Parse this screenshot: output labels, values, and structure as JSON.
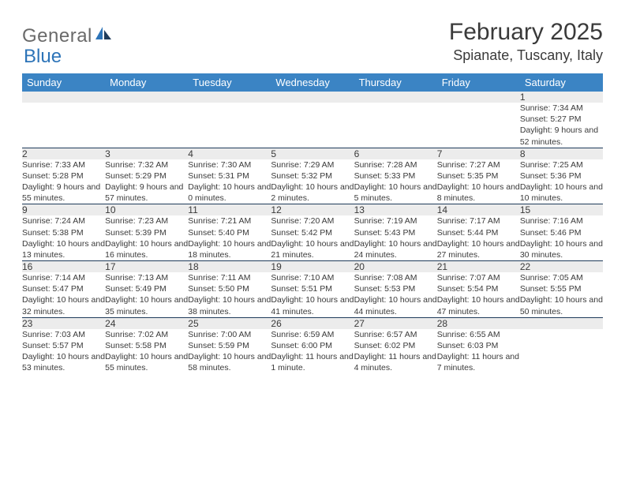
{
  "brand": {
    "word1": "General",
    "word2": "Blue"
  },
  "title": "February 2025",
  "location": "Spianate, Tuscany, Italy",
  "colors": {
    "header_bg": "#3b84c4",
    "header_fg": "#ffffff",
    "daynum_bg": "#ececec",
    "rule": "#1f3b5a",
    "text": "#3a3a3a",
    "brand_gray": "#6a6a6a",
    "brand_blue": "#2d74b8"
  },
  "typography": {
    "title_fontsize": 30,
    "location_fontsize": 18,
    "dayheader_fontsize": 13,
    "daynum_fontsize": 12,
    "body_fontsize": 10.5
  },
  "day_headers": [
    "Sunday",
    "Monday",
    "Tuesday",
    "Wednesday",
    "Thursday",
    "Friday",
    "Saturday"
  ],
  "weeks": [
    [
      null,
      null,
      null,
      null,
      null,
      null,
      {
        "n": "1",
        "sr": "7:34 AM",
        "ss": "5:27 PM",
        "dl": "9 hours and 52 minutes."
      }
    ],
    [
      {
        "n": "2",
        "sr": "7:33 AM",
        "ss": "5:28 PM",
        "dl": "9 hours and 55 minutes."
      },
      {
        "n": "3",
        "sr": "7:32 AM",
        "ss": "5:29 PM",
        "dl": "9 hours and 57 minutes."
      },
      {
        "n": "4",
        "sr": "7:30 AM",
        "ss": "5:31 PM",
        "dl": "10 hours and 0 minutes."
      },
      {
        "n": "5",
        "sr": "7:29 AM",
        "ss": "5:32 PM",
        "dl": "10 hours and 2 minutes."
      },
      {
        "n": "6",
        "sr": "7:28 AM",
        "ss": "5:33 PM",
        "dl": "10 hours and 5 minutes."
      },
      {
        "n": "7",
        "sr": "7:27 AM",
        "ss": "5:35 PM",
        "dl": "10 hours and 8 minutes."
      },
      {
        "n": "8",
        "sr": "7:25 AM",
        "ss": "5:36 PM",
        "dl": "10 hours and 10 minutes."
      }
    ],
    [
      {
        "n": "9",
        "sr": "7:24 AM",
        "ss": "5:38 PM",
        "dl": "10 hours and 13 minutes."
      },
      {
        "n": "10",
        "sr": "7:23 AM",
        "ss": "5:39 PM",
        "dl": "10 hours and 16 minutes."
      },
      {
        "n": "11",
        "sr": "7:21 AM",
        "ss": "5:40 PM",
        "dl": "10 hours and 18 minutes."
      },
      {
        "n": "12",
        "sr": "7:20 AM",
        "ss": "5:42 PM",
        "dl": "10 hours and 21 minutes."
      },
      {
        "n": "13",
        "sr": "7:19 AM",
        "ss": "5:43 PM",
        "dl": "10 hours and 24 minutes."
      },
      {
        "n": "14",
        "sr": "7:17 AM",
        "ss": "5:44 PM",
        "dl": "10 hours and 27 minutes."
      },
      {
        "n": "15",
        "sr": "7:16 AM",
        "ss": "5:46 PM",
        "dl": "10 hours and 30 minutes."
      }
    ],
    [
      {
        "n": "16",
        "sr": "7:14 AM",
        "ss": "5:47 PM",
        "dl": "10 hours and 32 minutes."
      },
      {
        "n": "17",
        "sr": "7:13 AM",
        "ss": "5:49 PM",
        "dl": "10 hours and 35 minutes."
      },
      {
        "n": "18",
        "sr": "7:11 AM",
        "ss": "5:50 PM",
        "dl": "10 hours and 38 minutes."
      },
      {
        "n": "19",
        "sr": "7:10 AM",
        "ss": "5:51 PM",
        "dl": "10 hours and 41 minutes."
      },
      {
        "n": "20",
        "sr": "7:08 AM",
        "ss": "5:53 PM",
        "dl": "10 hours and 44 minutes."
      },
      {
        "n": "21",
        "sr": "7:07 AM",
        "ss": "5:54 PM",
        "dl": "10 hours and 47 minutes."
      },
      {
        "n": "22",
        "sr": "7:05 AM",
        "ss": "5:55 PM",
        "dl": "10 hours and 50 minutes."
      }
    ],
    [
      {
        "n": "23",
        "sr": "7:03 AM",
        "ss": "5:57 PM",
        "dl": "10 hours and 53 minutes."
      },
      {
        "n": "24",
        "sr": "7:02 AM",
        "ss": "5:58 PM",
        "dl": "10 hours and 55 minutes."
      },
      {
        "n": "25",
        "sr": "7:00 AM",
        "ss": "5:59 PM",
        "dl": "10 hours and 58 minutes."
      },
      {
        "n": "26",
        "sr": "6:59 AM",
        "ss": "6:00 PM",
        "dl": "11 hours and 1 minute."
      },
      {
        "n": "27",
        "sr": "6:57 AM",
        "ss": "6:02 PM",
        "dl": "11 hours and 4 minutes."
      },
      {
        "n": "28",
        "sr": "6:55 AM",
        "ss": "6:03 PM",
        "dl": "11 hours and 7 minutes."
      },
      null
    ]
  ],
  "labels": {
    "sunrise": "Sunrise:",
    "sunset": "Sunset:",
    "daylight": "Daylight:"
  }
}
